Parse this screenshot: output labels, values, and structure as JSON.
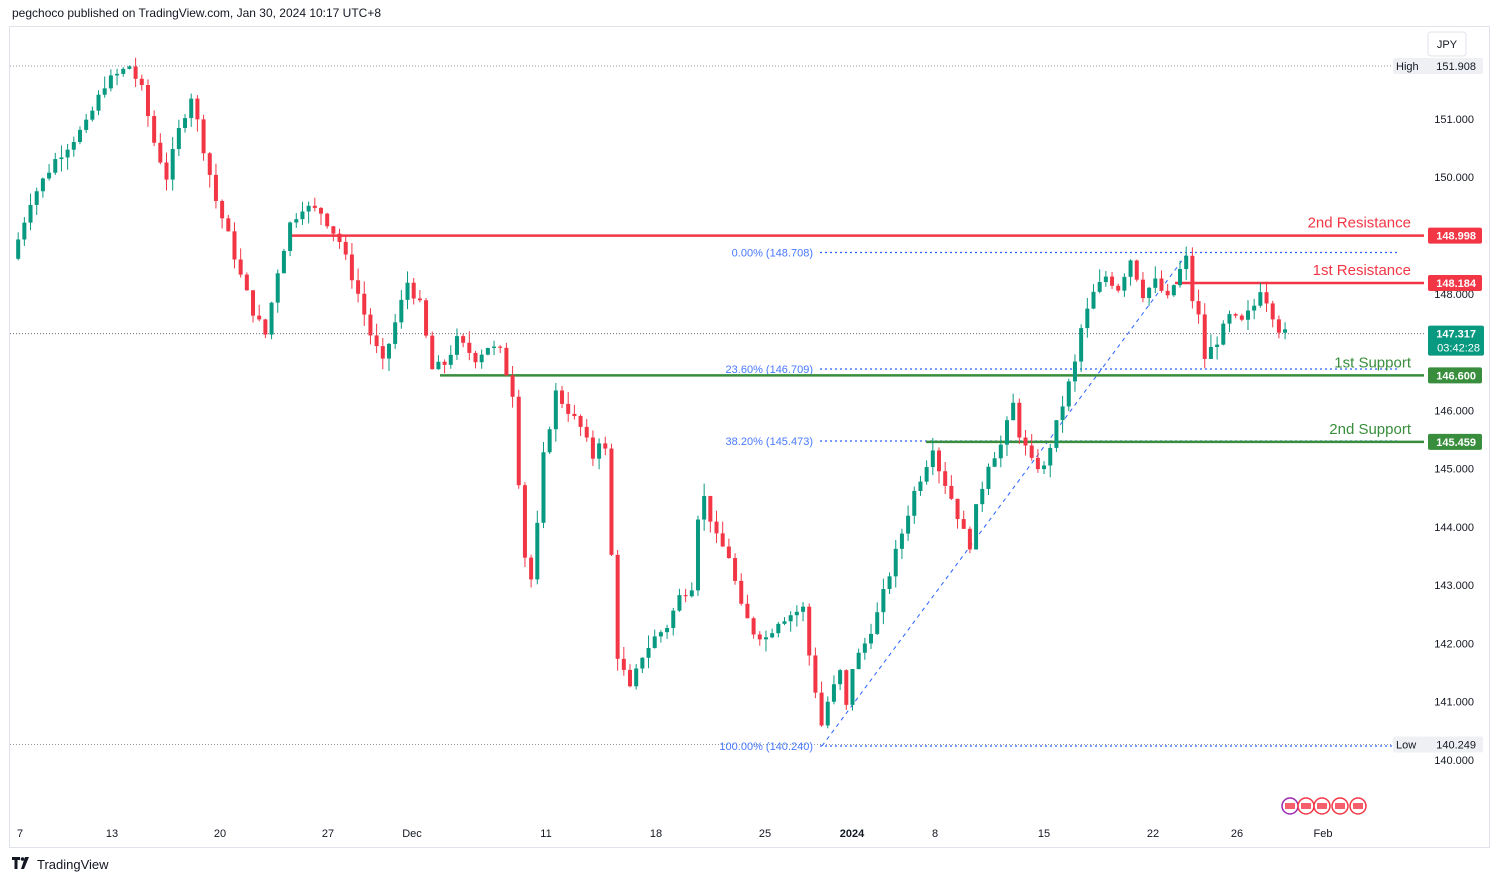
{
  "header": {
    "published": "pegchoco published on TradingView.com, Jan 30, 2024 10:17 UTC+8"
  },
  "footer": {
    "brand": "TradingView"
  },
  "currency": "JPY",
  "chart_data": {
    "type": "candlestick",
    "symbol_currency": "JPY",
    "y_range": [
      139.6,
      152.6
    ],
    "y_ticks": [
      140.0,
      141.0,
      142.0,
      143.0,
      144.0,
      145.0,
      146.0,
      147.0,
      148.0,
      150.0,
      151.0
    ],
    "y_tick_labels": [
      "140.000",
      "141.000",
      "142.000",
      "143.000",
      "144.000",
      "145.000",
      "146.000",
      "",
      "148.000",
      "150.000",
      "151.000"
    ],
    "x_labels": [
      {
        "label": "7",
        "bold": false
      },
      {
        "label": "13",
        "bold": false
      },
      {
        "label": "20",
        "bold": false
      },
      {
        "label": "27",
        "bold": false
      },
      {
        "label": "Dec",
        "bold": false
      },
      {
        "label": "11",
        "bold": false
      },
      {
        "label": "18",
        "bold": false
      },
      {
        "label": "25",
        "bold": false
      },
      {
        "label": "2024",
        "bold": true
      },
      {
        "label": "8",
        "bold": false
      },
      {
        "label": "15",
        "bold": false
      },
      {
        "label": "22",
        "bold": false
      },
      {
        "label": "26",
        "bold": false
      },
      {
        "label": "Feb",
        "bold": false
      }
    ],
    "high": {
      "label": "High",
      "value": 151.908,
      "text": "151.908"
    },
    "low": {
      "label": "Low",
      "value": 140.249,
      "text": "140.249"
    },
    "current": {
      "value": 147.317,
      "text": "147.317",
      "countdown": "03:42:28"
    },
    "levels": [
      {
        "name": "2nd Resistance",
        "value": 148.998,
        "text": "148.998",
        "color": "#f23645",
        "kind": "resistance"
      },
      {
        "name": "1st Resistance",
        "value": 148.184,
        "text": "148.184",
        "color": "#f23645",
        "kind": "resistance"
      },
      {
        "name": "1st Support",
        "value": 146.6,
        "text": "146.600",
        "color": "#388e3c",
        "kind": "support"
      },
      {
        "name": "2nd Support",
        "value": 145.459,
        "text": "145.459",
        "color": "#388e3c",
        "kind": "support"
      }
    ],
    "fib_levels": [
      {
        "label": "0.00% (148.708)",
        "value": 148.708
      },
      {
        "label": "23.60% (146.709)",
        "value": 146.709
      },
      {
        "label": "38.20% (145.473)",
        "value": 145.473
      },
      {
        "label": "100.00% (140.240)",
        "value": 140.24
      }
    ],
    "anchors": [
      {
        "t": 0,
        "p": 148.6
      },
      {
        "t": 3,
        "p": 149.6
      },
      {
        "t": 7,
        "p": 150.3
      },
      {
        "t": 12,
        "p": 150.9
      },
      {
        "t": 15,
        "p": 151.6
      },
      {
        "t": 19,
        "p": 151.908
      },
      {
        "t": 21,
        "p": 151.5
      },
      {
        "t": 23,
        "p": 150.6
      },
      {
        "t": 25,
        "p": 150.0
      },
      {
        "t": 27,
        "p": 150.8
      },
      {
        "t": 29,
        "p": 151.4
      },
      {
        "t": 31,
        "p": 150.5
      },
      {
        "t": 33,
        "p": 149.6
      },
      {
        "t": 35,
        "p": 149.0
      },
      {
        "t": 37,
        "p": 148.3
      },
      {
        "t": 39,
        "p": 147.7
      },
      {
        "t": 41,
        "p": 147.3
      },
      {
        "t": 43,
        "p": 148.4
      },
      {
        "t": 45,
        "p": 149.2
      },
      {
        "t": 47,
        "p": 149.5
      },
      {
        "t": 50,
        "p": 149.4
      },
      {
        "t": 53,
        "p": 148.9
      },
      {
        "t": 56,
        "p": 148.0
      },
      {
        "t": 58,
        "p": 147.3
      },
      {
        "t": 60,
        "p": 146.8
      },
      {
        "t": 62,
        "p": 147.5
      },
      {
        "t": 64,
        "p": 148.2
      },
      {
        "t": 66,
        "p": 147.8
      },
      {
        "t": 68,
        "p": 146.7
      },
      {
        "t": 70,
        "p": 146.8
      },
      {
        "t": 72,
        "p": 147.2
      },
      {
        "t": 75,
        "p": 146.9
      },
      {
        "t": 77,
        "p": 147.1
      },
      {
        "t": 79,
        "p": 147.0
      },
      {
        "t": 81,
        "p": 146.3
      },
      {
        "t": 82,
        "p": 144.8
      },
      {
        "t": 83,
        "p": 143.5
      },
      {
        "t": 84,
        "p": 143.1
      },
      {
        "t": 85,
        "p": 144.0
      },
      {
        "t": 86,
        "p": 145.2
      },
      {
        "t": 88,
        "p": 146.3
      },
      {
        "t": 90,
        "p": 146.0
      },
      {
        "t": 92,
        "p": 145.7
      },
      {
        "t": 94,
        "p": 145.2
      },
      {
        "t": 95,
        "p": 145.5
      },
      {
        "t": 96,
        "p": 145.3
      },
      {
        "t": 97,
        "p": 143.5
      },
      {
        "t": 98,
        "p": 141.8
      },
      {
        "t": 100,
        "p": 141.2
      },
      {
        "t": 102,
        "p": 141.8
      },
      {
        "t": 104,
        "p": 142.1
      },
      {
        "t": 106,
        "p": 142.3
      },
      {
        "t": 108,
        "p": 142.8
      },
      {
        "t": 110,
        "p": 143.0
      },
      {
        "t": 111,
        "p": 144.2
      },
      {
        "t": 112,
        "p": 144.5
      },
      {
        "t": 114,
        "p": 143.8
      },
      {
        "t": 116,
        "p": 143.5
      },
      {
        "t": 118,
        "p": 142.6
      },
      {
        "t": 120,
        "p": 142.2
      },
      {
        "t": 122,
        "p": 142.1
      },
      {
        "t": 124,
        "p": 142.4
      },
      {
        "t": 126,
        "p": 142.5
      },
      {
        "t": 128,
        "p": 142.6
      },
      {
        "t": 129,
        "p": 141.8
      },
      {
        "t": 130,
        "p": 141.2
      },
      {
        "t": 131,
        "p": 140.6
      },
      {
        "t": 132,
        "p": 141.0
      },
      {
        "t": 134,
        "p": 141.5
      },
      {
        "t": 135,
        "p": 140.9
      },
      {
        "t": 136,
        "p": 141.6
      },
      {
        "t": 138,
        "p": 142.0
      },
      {
        "t": 140,
        "p": 142.5
      },
      {
        "t": 142,
        "p": 143.2
      },
      {
        "t": 144,
        "p": 143.9
      },
      {
        "t": 146,
        "p": 144.6
      },
      {
        "t": 148,
        "p": 145.1
      },
      {
        "t": 149,
        "p": 145.4
      },
      {
        "t": 150,
        "p": 145.0
      },
      {
        "t": 152,
        "p": 144.5
      },
      {
        "t": 154,
        "p": 143.9
      },
      {
        "t": 155,
        "p": 143.7
      },
      {
        "t": 156,
        "p": 144.3
      },
      {
        "t": 158,
        "p": 145.1
      },
      {
        "t": 160,
        "p": 145.4
      },
      {
        "t": 162,
        "p": 146.1
      },
      {
        "t": 163,
        "p": 145.6
      },
      {
        "t": 165,
        "p": 145.1
      },
      {
        "t": 167,
        "p": 145.0
      },
      {
        "t": 168,
        "p": 145.4
      },
      {
        "t": 170,
        "p": 146.1
      },
      {
        "t": 172,
        "p": 146.8
      },
      {
        "t": 173,
        "p": 147.4
      },
      {
        "t": 175,
        "p": 148.0
      },
      {
        "t": 177,
        "p": 148.3
      },
      {
        "t": 179,
        "p": 148.1
      },
      {
        "t": 181,
        "p": 148.6
      },
      {
        "t": 183,
        "p": 148.0
      },
      {
        "t": 185,
        "p": 148.2
      },
      {
        "t": 187,
        "p": 147.9
      },
      {
        "t": 189,
        "p": 148.4
      },
      {
        "t": 190,
        "p": 148.6
      },
      {
        "t": 191,
        "p": 147.9
      },
      {
        "t": 192,
        "p": 147.6
      },
      {
        "t": 193,
        "p": 146.9
      },
      {
        "t": 195,
        "p": 147.2
      },
      {
        "t": 197,
        "p": 147.6
      },
      {
        "t": 199,
        "p": 147.5
      },
      {
        "t": 201,
        "p": 147.8
      },
      {
        "t": 202,
        "p": 148.1
      },
      {
        "t": 203,
        "p": 147.9
      },
      {
        "t": 205,
        "p": 147.4
      },
      {
        "t": 206,
        "p": 147.317
      }
    ]
  }
}
